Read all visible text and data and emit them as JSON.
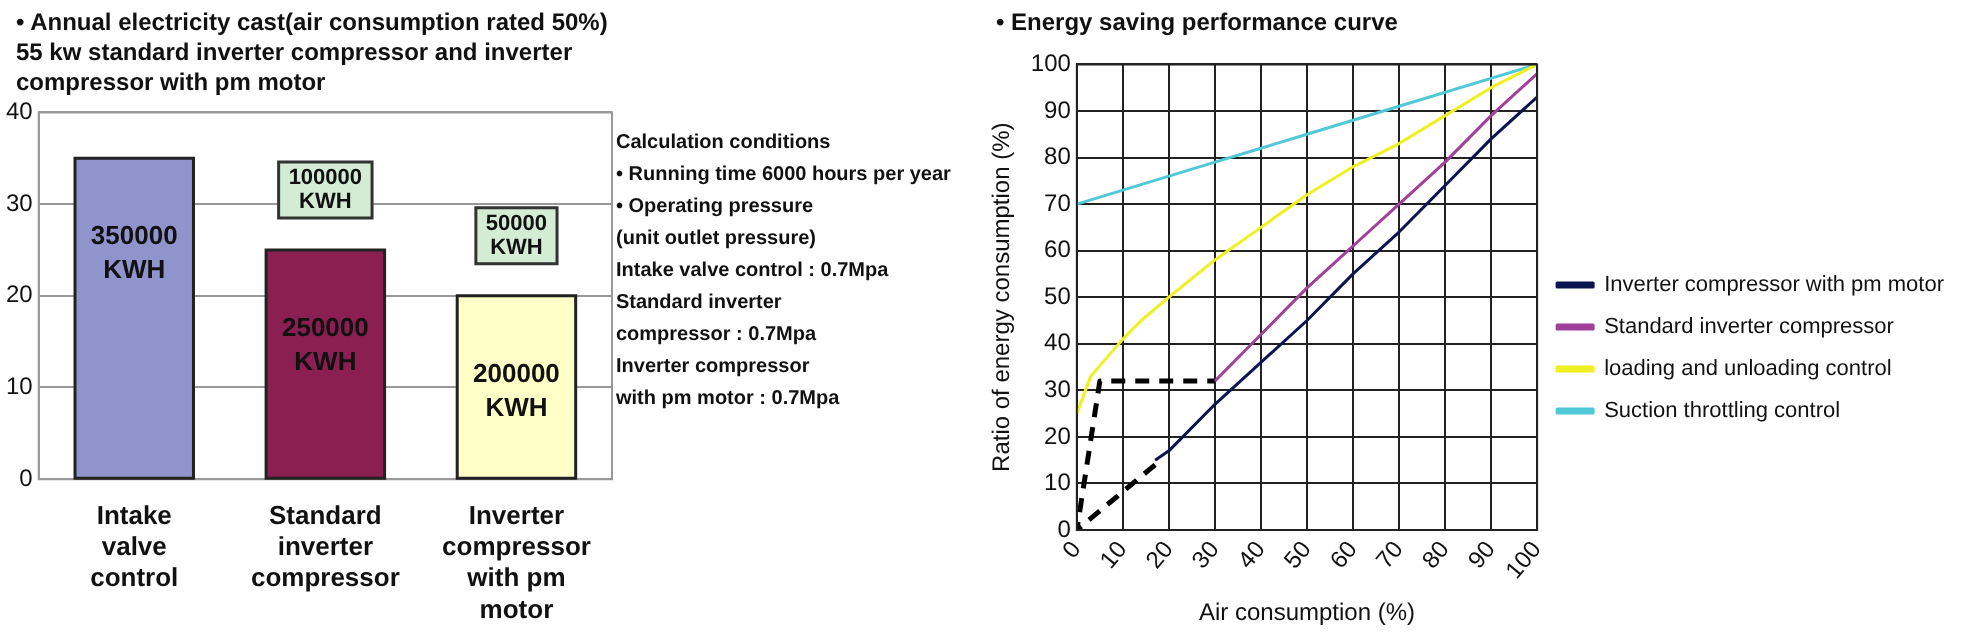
{
  "chart_data": [
    {
      "type": "bar",
      "title": "• Annual electricity cast(air consumption rated 50%) 55 kw standard inverter compressor and inverter compressor with pm motor",
      "categories": [
        "Intake valve control",
        "Standard inverter compressor",
        "Inverter compressor with pm motor"
      ],
      "values": [
        35,
        25,
        20
      ],
      "colors": [
        "#8f94cc",
        "#8b1f52",
        "#ffffc8"
      ],
      "ylim": [
        0,
        40
      ],
      "yticks": [
        0,
        10,
        20,
        30,
        40
      ],
      "grid": "y",
      "legend": false,
      "annotations": [
        {
          "text": "350000 KWH",
          "x": "Intake valve control",
          "y": 35
        },
        {
          "text": "250000 KWH",
          "x": "Standard inverter compressor",
          "y": 25
        },
        {
          "text": "200000 KWH",
          "x": "Inverter compressor with pm motor",
          "y": 20
        },
        {
          "text": "100000 KWH",
          "x": "Standard inverter compressor",
          "y": 25
        },
        {
          "text": "50000 KWH",
          "x": "Inverter compressor with pm motor",
          "y": 20
        },
        "Calculation conditions",
        "• Running time 6000 hours per year",
        "• Operating pressure",
        "(unit outlet pressure)",
        "Intake valve control : 0.7Mpa",
        "Standard inverter",
        "compressor : 0.7Mpa",
        "Inverter compressor",
        "with pm motor : 0.7Mpa"
      ]
    },
    {
      "type": "line",
      "title": "• Energy saving performance curve",
      "xlabel": "Air consumption (%)",
      "ylabel": "Ratio of energy consumption (%)",
      "xlim": [
        0,
        100
      ],
      "xticks": [
        0,
        10,
        20,
        30,
        40,
        50,
        60,
        70,
        80,
        90,
        100
      ],
      "ylim": [
        0,
        100
      ],
      "yticks": [
        0,
        10,
        20,
        30,
        40,
        50,
        60,
        70,
        80,
        90,
        100
      ],
      "grid": true,
      "legend": "right",
      "marker": "none",
      "series": [
        {
          "name": "Inverter compressor with pm motor",
          "color": "#0a1450",
          "x": [
            17,
            20,
            30,
            40,
            50,
            60,
            70,
            80,
            90,
            100
          ],
          "values": [
            15,
            17,
            27,
            36,
            45,
            55,
            64,
            74,
            84,
            93
          ]
        },
        {
          "name": "Standard inverter compressor",
          "color": "#a0409a",
          "x": [
            30,
            40,
            50,
            60,
            70,
            80,
            90,
            100
          ],
          "values": [
            32,
            42,
            52,
            61,
            70,
            79,
            89,
            98
          ]
        },
        {
          "name": "loading and unloading control",
          "color": "#f0f020",
          "x": [
            0,
            3,
            10,
            14,
            20,
            30,
            40,
            50,
            60,
            70,
            80,
            90,
            100
          ],
          "values": [
            25,
            33,
            41,
            45,
            50,
            58,
            65,
            72,
            78,
            83,
            89,
            95,
            100
          ]
        },
        {
          "name": "Suction throttling control",
          "color": "#50c8d8",
          "x": [
            0,
            30,
            50,
            70,
            100
          ],
          "values": [
            70,
            79,
            85,
            91,
            100
          ]
        },
        {
          "color": "#000000",
          "line_style": "dashed",
          "x": [
            17,
            0,
            5,
            30
          ],
          "values": [
            14,
            0,
            32,
            32
          ]
        }
      ]
    }
  ]
}
